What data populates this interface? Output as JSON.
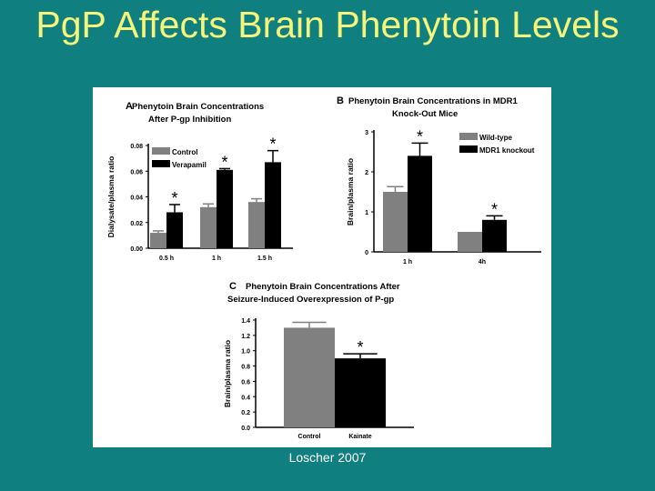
{
  "slide": {
    "title": "PgP Affects Brain Phenytoin Levels",
    "caption": "Loscher 2007"
  },
  "colors": {
    "background": "#0f7f80",
    "title": "#f5f57a",
    "gray_bar": "#808080",
    "black_bar": "#000000"
  },
  "chart_data": [
    {
      "type": "bar",
      "panel": "A",
      "title": [
        "Phenytoin Brain Concentrations",
        "After P-gp Inhibition"
      ],
      "ylabel": "Dialysate/plasma ratio",
      "categories": [
        "0.5 h",
        "1 h",
        "1.5 h"
      ],
      "ylim": [
        0,
        0.08
      ],
      "yticks": [
        "0.00",
        "0.02",
        "0.04",
        "0.06",
        "0.08"
      ],
      "legend": "top-left",
      "series": [
        {
          "name": "Control",
          "values": [
            0.012,
            0.032,
            0.036
          ],
          "errors": [
            0.0015,
            0.0025,
            0.0025
          ],
          "color": "#808080"
        },
        {
          "name": "Verapamil",
          "values": [
            0.028,
            0.061,
            0.067
          ],
          "errors": [
            0.006,
            0.001,
            0.009
          ],
          "color": "#000000"
        }
      ],
      "significance": [
        false,
        false,
        false,
        true,
        true,
        true
      ]
    },
    {
      "type": "bar",
      "panel": "B",
      "title": [
        "Phenytoin Brain Concentrations in MDR1",
        "Knock-Out Mice"
      ],
      "ylabel": "Brain/plasma ratio",
      "categories": [
        "1 h",
        "4h"
      ],
      "ylim": [
        0,
        3
      ],
      "yticks": [
        "0",
        "1",
        "2",
        "3"
      ],
      "legend": "top-right",
      "series": [
        {
          "name": "Wild-type",
          "values": [
            1.5,
            0.5
          ],
          "errors": [
            0.13,
            0
          ],
          "color": "#808080"
        },
        {
          "name": "MDR1 knockout",
          "values": [
            2.4,
            0.8
          ],
          "errors": [
            0.32,
            0.1
          ],
          "color": "#000000"
        }
      ],
      "significance": [
        false,
        false,
        true,
        true
      ]
    },
    {
      "type": "bar",
      "panel": "C",
      "title": [
        "Phenytoin Brain Concentrations After",
        "Seizure-Induced Overexpression of P-gp"
      ],
      "ylabel": "Brain/plasma ratio",
      "categories": [
        "Control",
        "Kainate"
      ],
      "ylim": [
        0,
        1.4
      ],
      "yticks": [
        "0.0",
        "0.2",
        "0.4",
        "0.6",
        "0.8",
        "1.0",
        "1.2",
        "1.4"
      ],
      "series": [
        {
          "values": [
            1.3,
            0.9
          ],
          "errors": [
            0.07,
            0.06
          ],
          "colors": [
            "#808080",
            "#000000"
          ]
        }
      ],
      "significance": [
        false,
        true
      ]
    }
  ]
}
